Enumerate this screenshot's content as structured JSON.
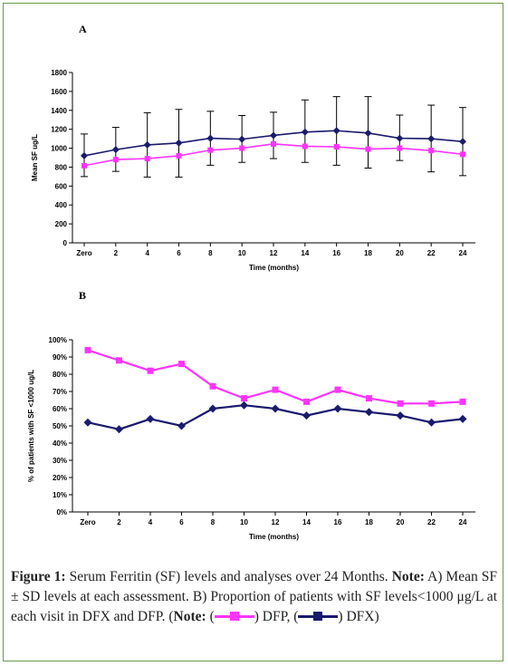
{
  "colors": {
    "dfp": "#ff33ff",
    "dfx": "#1a1a6e",
    "frame": "#6a9a4a"
  },
  "caption": {
    "fig_label": "Figure 1:",
    "fig_text": " Serum Ferritin (SF) levels and analyses over 24 Months. ",
    "note_label": "Note:",
    "note_text": " A) Mean SF ± SD levels at each assessment. B) Proportion of patients with SF levels<1000 μg/L at each visit in DFX and DFP. (",
    "note2_label": "Note:",
    "legend_dfp": ") DFP, (",
    "legend_dfx": ") DFX)"
  },
  "chart_data": [
    {
      "panel": "A",
      "type": "line",
      "title": "",
      "xlabel": "Time (months)",
      "ylabel": "Mean SF ug/L",
      "categories": [
        "Zero",
        "2",
        "4",
        "6",
        "8",
        "10",
        "12",
        "14",
        "16",
        "18",
        "20",
        "22",
        "24"
      ],
      "ylim": [
        0,
        1800
      ],
      "yticks": [
        "0",
        "200",
        "400",
        "600",
        "800",
        "1000",
        "1200",
        "1400",
        "1600",
        "1800"
      ],
      "ytick_values": [
        0,
        200,
        400,
        600,
        800,
        1000,
        1200,
        1400,
        1600,
        1800
      ],
      "grid": false,
      "series": [
        {
          "key": "dfx",
          "values": [
            920,
            985,
            1035,
            1055,
            1105,
            1095,
            1135,
            1170,
            1185,
            1160,
            1105,
            1100,
            1070
          ],
          "error_high": [
            1150,
            1220,
            1375,
            1410,
            1390,
            1345,
            1380,
            1510,
            1545,
            1545,
            1350,
            1455,
            1430
          ],
          "error_low": [
            700,
            755,
            695,
            695,
            820,
            850,
            890,
            850,
            820,
            790,
            870,
            750,
            710
          ]
        },
        {
          "key": "dfp",
          "values": [
            815,
            880,
            890,
            920,
            980,
            1000,
            1045,
            1020,
            1015,
            990,
            1000,
            975,
            935
          ]
        }
      ]
    },
    {
      "panel": "B",
      "type": "line",
      "title": "",
      "xlabel": "Time (months)",
      "ylabel": "% of patients with SF <1000 ug/L",
      "categories": [
        "Zero",
        "2",
        "4",
        "6",
        "8",
        "10",
        "12",
        "14",
        "16",
        "18",
        "20",
        "22",
        "24"
      ],
      "ylim": [
        0,
        100
      ],
      "yticks": [
        "0%",
        "10%",
        "20%",
        "30%",
        "40%",
        "50%",
        "60%",
        "70%",
        "80%",
        "90%",
        "100%"
      ],
      "ytick_values": [
        0,
        10,
        20,
        30,
        40,
        50,
        60,
        70,
        80,
        90,
        100
      ],
      "grid": false,
      "series": [
        {
          "key": "dfp",
          "values": [
            94,
            88,
            82,
            86,
            73,
            66,
            71,
            64,
            71,
            66,
            63,
            63,
            64
          ]
        },
        {
          "key": "dfx",
          "values": [
            52,
            48,
            54,
            50,
            60,
            62,
            60,
            56,
            60,
            58,
            56,
            52,
            54
          ]
        }
      ]
    }
  ]
}
